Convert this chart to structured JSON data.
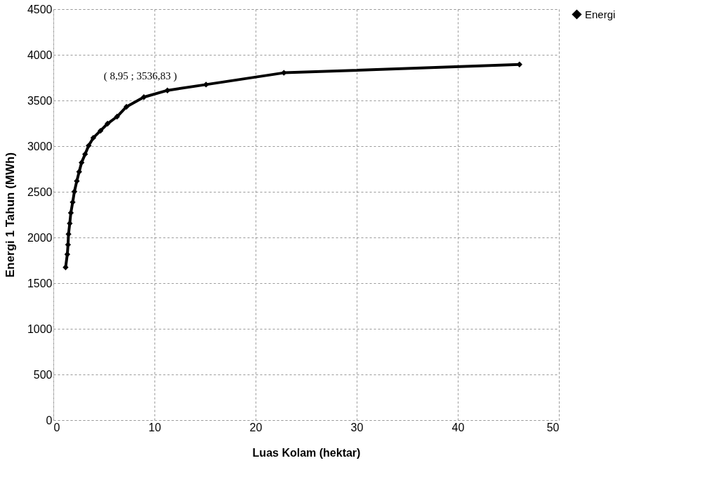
{
  "chart_data": {
    "type": "line",
    "xlabel": "Luas Kolam (hektar)",
    "ylabel": "Energi 1 Tahun (MWh)",
    "xlim": [
      0,
      50
    ],
    "xticks": [
      0,
      10,
      20,
      30,
      40,
      50
    ],
    "ylim": [
      0,
      4500
    ],
    "yticks": [
      0,
      500,
      1000,
      1500,
      2000,
      2500,
      3000,
      3500,
      4000,
      4500
    ],
    "grid": true,
    "legend": "right",
    "marker": "diamond",
    "line_style": "solid",
    "x": [
      1.21,
      1.38,
      1.45,
      1.5,
      1.62,
      1.73,
      1.91,
      2.08,
      2.32,
      2.55,
      2.79,
      3.14,
      3.49,
      3.95,
      4.66,
      5.36,
      6.3,
      7.23,
      8.95,
      11.28,
      15.1,
      22.8,
      46.1
    ],
    "series": [
      {
        "name": "Energi",
        "color": "#000000",
        "values": [
          1673,
          1815,
          1921,
          2037,
          2153,
          2270,
          2386,
          2502,
          2618,
          2719,
          2820,
          2912,
          3005,
          3091,
          3168,
          3246,
          3323,
          3431,
          3536.83,
          3610,
          3674,
          3803,
          3894
        ]
      }
    ],
    "annotations": [
      {
        "text": "( 8,95 ; 3536,83 )",
        "x": 8.95,
        "y": 3536.83
      }
    ]
  }
}
